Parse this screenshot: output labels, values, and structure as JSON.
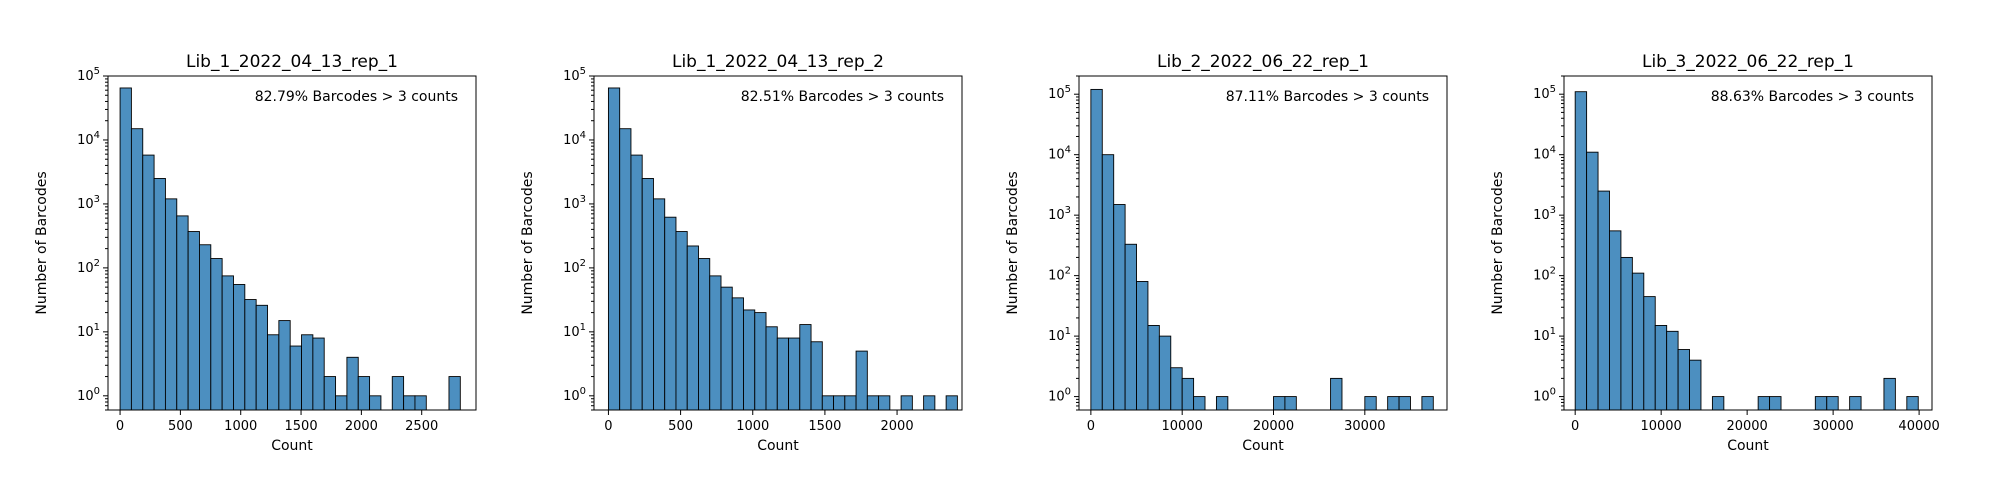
{
  "chart_data": [
    {
      "type": "bar",
      "title": "Lib_1_2022_04_13_rep_1",
      "xlabel": "Count",
      "ylabel": "Number of Barcodes",
      "annotation": "82.79% Barcodes > 3 counts",
      "yscale": "log",
      "ylim": [
        0.6,
        100000
      ],
      "xlim": [
        -100,
        2950
      ],
      "xticks": [
        0,
        500,
        1000,
        1500,
        2000,
        2500
      ],
      "yticks": [
        "10^0",
        "10^1",
        "10^2",
        "10^3",
        "10^4",
        "10^5"
      ],
      "bin_start": 0,
      "bin_width": 94,
      "values": [
        65000,
        15000,
        5800,
        2500,
        1200,
        650,
        370,
        230,
        140,
        75,
        55,
        32,
        26,
        9,
        15,
        6,
        9,
        8,
        2,
        1,
        4,
        2,
        1,
        0,
        2,
        1,
        1,
        0,
        0,
        2
      ],
      "color": "#4c8fc0"
    },
    {
      "type": "bar",
      "title": "Lib_1_2022_04_13_rep_2",
      "xlabel": "Count",
      "ylabel": "Number of Barcodes",
      "annotation": "82.51% Barcodes > 3 counts",
      "yscale": "log",
      "ylim": [
        0.6,
        100000
      ],
      "xlim": [
        -100,
        2450
      ],
      "xticks": [
        0,
        500,
        1000,
        1500,
        2000
      ],
      "yticks": [
        "10^0",
        "10^1",
        "10^2",
        "10^3",
        "10^4",
        "10^5"
      ],
      "bin_start": 0,
      "bin_width": 78,
      "values": [
        65000,
        15000,
        5800,
        2500,
        1200,
        620,
        370,
        220,
        140,
        75,
        50,
        34,
        22,
        20,
        12,
        8,
        8,
        13,
        7,
        1,
        1,
        1,
        5,
        1,
        1,
        0,
        1,
        0,
        1,
        0,
        1
      ],
      "color": "#4c8fc0"
    },
    {
      "type": "bar",
      "title": "Lib_2_2022_06_22_rep_1",
      "xlabel": "Count",
      "ylabel": "Number of Barcodes",
      "annotation": "87.11% Barcodes > 3 counts",
      "yscale": "log",
      "ylim": [
        0.6,
        200000
      ],
      "xlim": [
        -1300,
        39000
      ],
      "xticks": [
        0,
        10000,
        20000,
        30000
      ],
      "yticks": [
        "10^0",
        "10^1",
        "10^2",
        "10^3",
        "10^4",
        "10^5"
      ],
      "bin_start": 0,
      "bin_width": 1250,
      "values": [
        120000,
        10000,
        1500,
        330,
        80,
        15,
        10,
        3,
        2,
        1,
        0,
        1,
        0,
        0,
        0,
        0,
        1,
        1,
        0,
        0,
        0,
        2,
        0,
        0,
        1,
        0,
        1,
        1,
        0,
        1
      ],
      "color": "#4c8fc0"
    },
    {
      "type": "bar",
      "title": "Lib_3_2022_06_22_rep_1",
      "xlabel": "Count",
      "ylabel": "Number of Barcodes",
      "annotation": "88.63% Barcodes > 3 counts",
      "yscale": "log",
      "ylim": [
        0.6,
        200000
      ],
      "xlim": [
        -1300,
        41500
      ],
      "xticks": [
        0,
        10000,
        20000,
        30000,
        40000
      ],
      "yticks": [
        "10^0",
        "10^1",
        "10^2",
        "10^3",
        "10^4",
        "10^5"
      ],
      "bin_start": 0,
      "bin_width": 1330,
      "values": [
        110000,
        11000,
        2500,
        550,
        200,
        110,
        45,
        15,
        12,
        6,
        4,
        0,
        1,
        0,
        0,
        0,
        1,
        1,
        0,
        0,
        0,
        1,
        1,
        0,
        1,
        0,
        0,
        2,
        0,
        1
      ],
      "color": "#4c8fc0"
    }
  ]
}
